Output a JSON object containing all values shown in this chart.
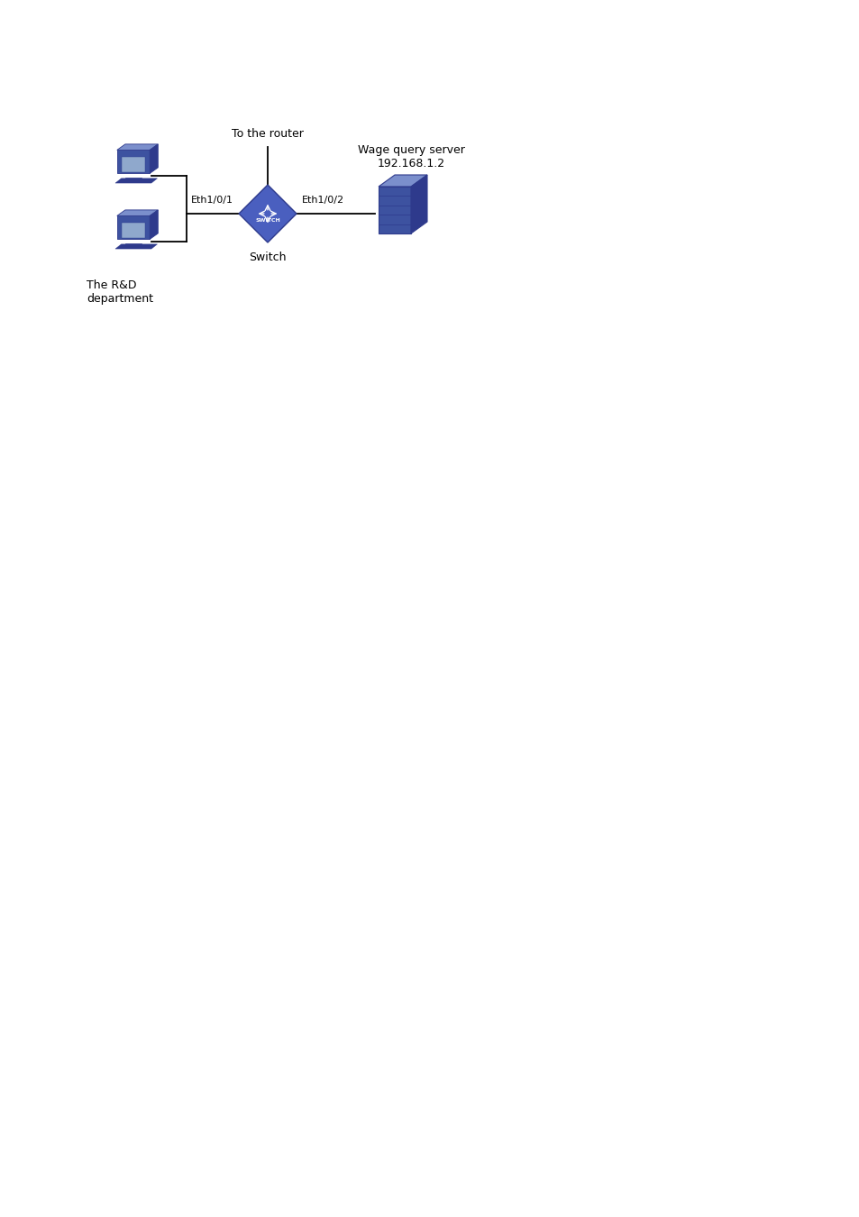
{
  "bg_color": "#ffffff",
  "fig_width": 9.54,
  "fig_height": 13.5,
  "dpi": 100,
  "dark_blue": "#2E3A8C",
  "medium_blue": "#3D52A0",
  "light_blue": "#7B8FCC",
  "very_light_blue": "#8FA8CC",
  "line_color": "#000000",
  "text_color": "#000000",
  "label_to_router": "To the router",
  "label_switch": "Switch",
  "label_server_line1": "Wage query server",
  "label_server_line2": "192.168.1.2",
  "label_rd": "The R&D\ndepartment",
  "label_eth1": "Eth1/0/1",
  "label_eth2": "Eth1/0/2",
  "font_size": 9,
  "font_size_small": 8
}
